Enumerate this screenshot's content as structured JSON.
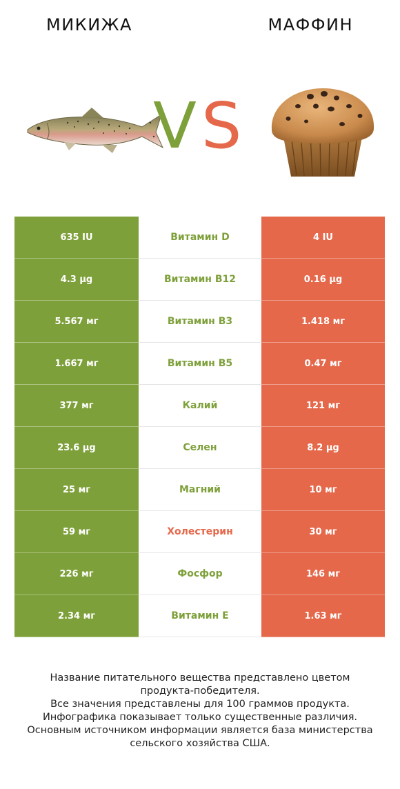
{
  "header": {
    "left_title": "МИКИЖА",
    "right_title": "МАФФИН",
    "vs_v": "V",
    "vs_s": "S"
  },
  "colors": {
    "left": "#7ea03a",
    "right": "#e5684b"
  },
  "rows": [
    {
      "left": "635 IU",
      "nutrient": "Витамин D",
      "right": "4 IU",
      "winner": "left"
    },
    {
      "left": "4.3 µg",
      "nutrient": "Витамин B12",
      "right": "0.16 µg",
      "winner": "left"
    },
    {
      "left": "5.567 мг",
      "nutrient": "Витамин B3",
      "right": "1.418 мг",
      "winner": "left"
    },
    {
      "left": "1.667 мг",
      "nutrient": "Витамин B5",
      "right": "0.47 мг",
      "winner": "left"
    },
    {
      "left": "377 мг",
      "nutrient": "Калий",
      "right": "121 мг",
      "winner": "left"
    },
    {
      "left": "23.6 µg",
      "nutrient": "Селен",
      "right": "8.2 µg",
      "winner": "left"
    },
    {
      "left": "25 мг",
      "nutrient": "Магний",
      "right": "10 мг",
      "winner": "left"
    },
    {
      "left": "59 мг",
      "nutrient": "Холестерин",
      "right": "30 мг",
      "winner": "right"
    },
    {
      "left": "226 мг",
      "nutrient": "Фосфор",
      "right": "146 мг",
      "winner": "left"
    },
    {
      "left": "2.34 мг",
      "nutrient": "Витамин E",
      "right": "1.63 мг",
      "winner": "left"
    }
  ],
  "footer": {
    "line1": "Название питательного вещества представлено цветом",
    "line2": "продукта-победителя.",
    "line3": "Все значения представлены для 100 граммов продукта.",
    "line4": "Инфографика показывает только существенные различия.",
    "line5": "Основным источником информации является база министерства",
    "line6": "сельского хозяйства США."
  }
}
